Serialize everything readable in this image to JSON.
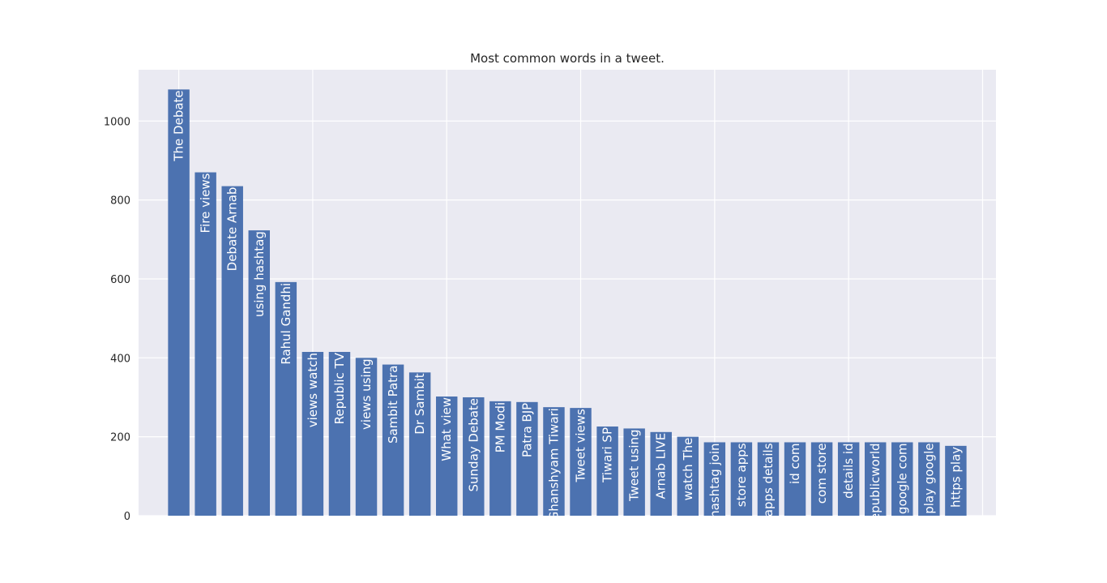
{
  "chart_data": {
    "type": "bar",
    "title": "Most common words in a tweet.",
    "xlabel": "",
    "ylabel": "",
    "ylim": [
      0,
      1130
    ],
    "yticks": [
      0,
      200,
      400,
      600,
      800,
      1000
    ],
    "grid": true,
    "categories": [
      "The Debate",
      "Fire views",
      "Debate Arnab",
      "using hashtag",
      "Rahul Gandhi",
      "views watch",
      "Republic TV",
      "views using",
      "Sambit Patra",
      "Dr Sambit",
      "What view",
      "Sunday Debate",
      "PM Modi",
      "Patra BJP",
      "Ghanshyam Tiwari",
      "Tweet views",
      "Tiwari SP",
      "Tweet using",
      "Arnab LIVE",
      "watch The",
      "hashtag join",
      "store apps",
      "apps details",
      "id com",
      "com store",
      "details id",
      "republicworld",
      "google com",
      "play google",
      "https play"
    ],
    "values": [
      1080,
      870,
      835,
      723,
      592,
      415,
      415,
      400,
      383,
      363,
      302,
      300,
      290,
      288,
      275,
      273,
      226,
      221,
      212,
      200,
      186,
      186,
      186,
      186,
      186,
      186,
      186,
      186,
      186,
      177
    ],
    "colors": {
      "bar": "#4c72b0",
      "background": "#eaeaf2",
      "grid": "#ffffff",
      "label": "#ffffff",
      "text": "#262626"
    }
  }
}
